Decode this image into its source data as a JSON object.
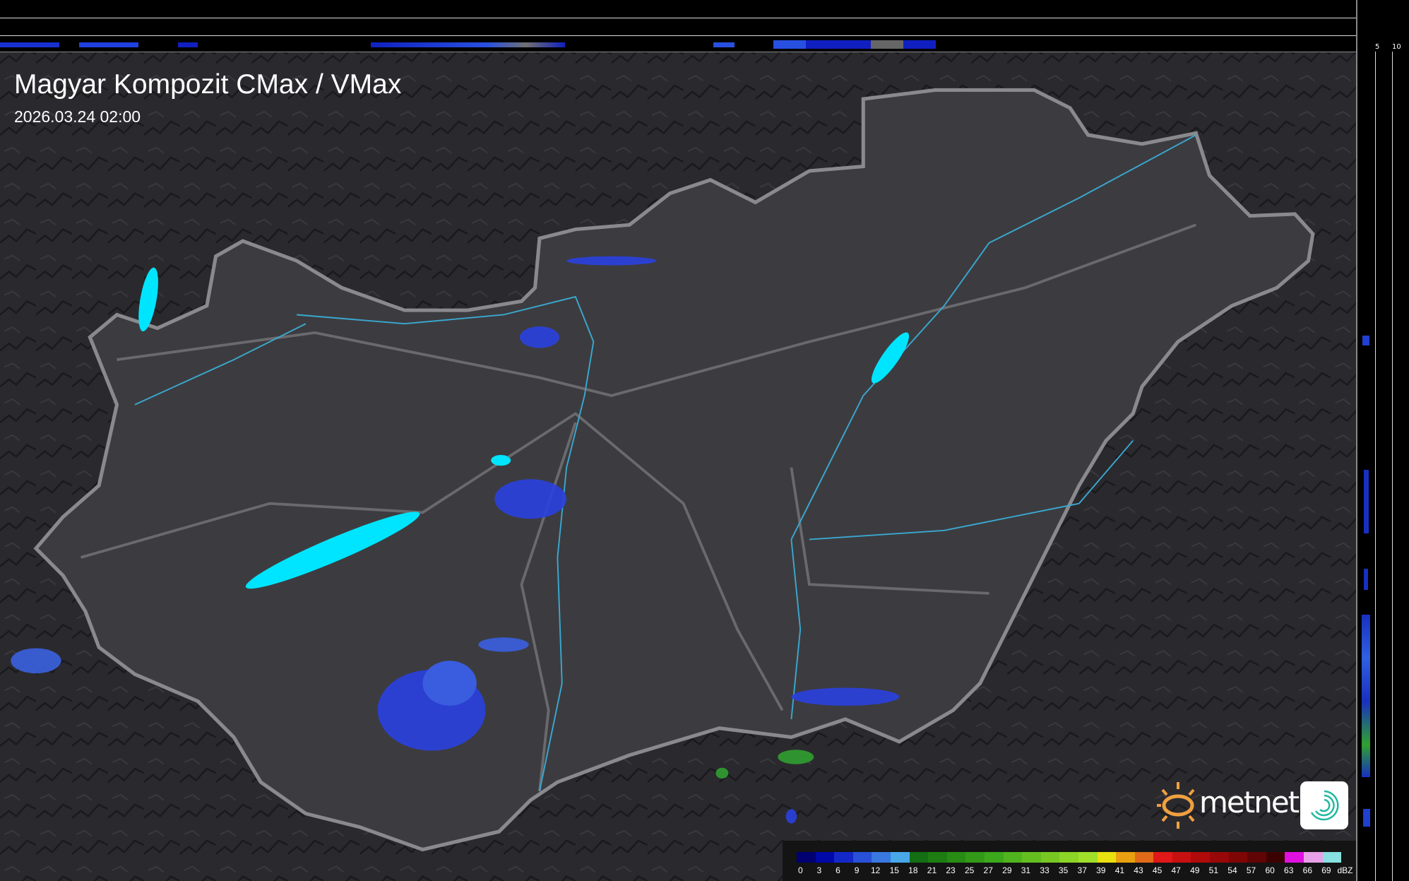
{
  "header": {
    "title": "Magyar Kompozit CMax / VMax",
    "timestamp": "2026.03.24 02:00"
  },
  "profile_axes": {
    "top_ticks": [
      "10",
      "5"
    ],
    "right_ticks": [
      "5",
      "10"
    ]
  },
  "legend": {
    "unit": "dBZ",
    "values": [
      "0",
      "3",
      "6",
      "9",
      "12",
      "15",
      "18",
      "21",
      "23",
      "25",
      "27",
      "29",
      "31",
      "33",
      "35",
      "37",
      "39",
      "41",
      "43",
      "45",
      "47",
      "49",
      "51",
      "54",
      "57",
      "60",
      "63",
      "66",
      "69"
    ],
    "colors": [
      "#000070",
      "#0008a8",
      "#1428c8",
      "#2850d8",
      "#3878e0",
      "#48a8e8",
      "#146e14",
      "#1e7d12",
      "#288c14",
      "#329a18",
      "#3ca81c",
      "#50b41e",
      "#64be20",
      "#78c822",
      "#8cd426",
      "#a0e02a",
      "#e8e010",
      "#e8a010",
      "#e06a18",
      "#e01818",
      "#c81010",
      "#b00a0a",
      "#980808",
      "#800606",
      "#600404",
      "#3c0202",
      "#e010e0",
      "#e8a0e8",
      "#88e0e0"
    ]
  },
  "map": {
    "land_color": "#3c3c40",
    "border_color": "#8a8a8e",
    "river_color": "#3aa8d0",
    "lake_color": "#00e5ff",
    "radar_color": "#2a40e0"
  },
  "branding": {
    "logo_text": "metnet",
    "sun_color": "#f0a040",
    "icon_color": "#20b8a0"
  }
}
